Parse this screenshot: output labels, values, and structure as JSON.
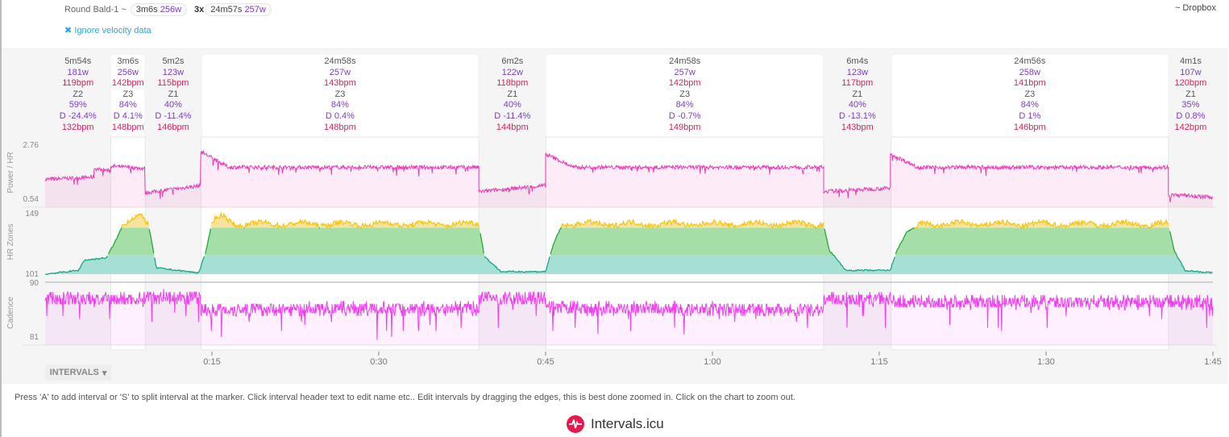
{
  "header": {
    "activity": "Round Bald-1 ~",
    "chip1": {
      "time": "3m6s",
      "watts": "256w"
    },
    "repeat": "3x",
    "chip2": {
      "time": "24m57s",
      "watts": "257w"
    },
    "source": "~ Dropbox",
    "ignore_velocity": "Ignore velocity data"
  },
  "intervals": [
    {
      "start": 0,
      "end": 5.9,
      "selected": false,
      "time": "5m54s",
      "watts": "181w",
      "hr": "119bpm",
      "zone": "Z2",
      "pct": "59%",
      "decoupling": "D -24.4%",
      "maxhr": "132bpm"
    },
    {
      "start": 5.9,
      "end": 9.0,
      "selected": true,
      "time": "3m6s",
      "watts": "256w",
      "hr": "142bpm",
      "zone": "Z3",
      "pct": "84%",
      "decoupling": "D 4.1%",
      "maxhr": "148bpm"
    },
    {
      "start": 9.0,
      "end": 14.03,
      "selected": false,
      "time": "5m2s",
      "watts": "123w",
      "hr": "115bpm",
      "zone": "Z1",
      "pct": "40%",
      "decoupling": "D -11.4%",
      "maxhr": "146bpm"
    },
    {
      "start": 14.03,
      "end": 39.0,
      "selected": true,
      "time": "24m58s",
      "watts": "257w",
      "hr": "143bpm",
      "zone": "Z3",
      "pct": "84%",
      "decoupling": "D 0.4%",
      "maxhr": "148bpm"
    },
    {
      "start": 39.0,
      "end": 45.03,
      "selected": false,
      "time": "6m2s",
      "watts": "122w",
      "hr": "118bpm",
      "zone": "Z1",
      "pct": "40%",
      "decoupling": "D -11.4%",
      "maxhr": "144bpm"
    },
    {
      "start": 45.03,
      "end": 70.0,
      "selected": true,
      "time": "24m58s",
      "watts": "257w",
      "hr": "142bpm",
      "zone": "Z3",
      "pct": "84%",
      "decoupling": "D -0.7%",
      "maxhr": "149bpm"
    },
    {
      "start": 70.0,
      "end": 76.07,
      "selected": false,
      "time": "6m4s",
      "watts": "123w",
      "hr": "117bpm",
      "zone": "Z1",
      "pct": "40%",
      "decoupling": "D -13.1%",
      "maxhr": "143bpm"
    },
    {
      "start": 76.07,
      "end": 101.0,
      "selected": true,
      "time": "24m56s",
      "watts": "258w",
      "hr": "141bpm",
      "zone": "Z3",
      "pct": "84%",
      "decoupling": "D 1%",
      "maxhr": "146bpm"
    },
    {
      "start": 101.0,
      "end": 105.0,
      "selected": false,
      "time": "4m1s",
      "watts": "107w",
      "hr": "120bpm",
      "zone": "Z1",
      "pct": "35%",
      "decoupling": "D 0.8%",
      "maxhr": "142bpm"
    }
  ],
  "chart_data": {
    "type": "line",
    "x_range_minutes": [
      0,
      105
    ],
    "x_ticks": [
      "0:15",
      "0:30",
      "0:45",
      "1:00",
      "1:15",
      "1:30",
      "1:45"
    ],
    "panels": [
      {
        "name": "Power / HR",
        "ylim": [
          0.54,
          2.76
        ],
        "ytick_labels": [
          "2.76",
          "0.54"
        ],
        "color": "#e83fb5",
        "segments": [
          [
            0,
            4.4,
            1.35,
            1.45
          ],
          [
            4.4,
            5.9,
            1.8,
            1.7
          ],
          [
            5.9,
            9,
            1.9,
            1.8
          ],
          [
            9,
            14,
            0.8,
            1.1
          ],
          [
            14,
            16.5,
            2.5,
            1.85
          ],
          [
            16.5,
            39,
            1.85,
            1.85
          ],
          [
            39,
            45,
            0.85,
            1.1
          ],
          [
            45,
            47.5,
            2.4,
            1.85
          ],
          [
            47.5,
            70,
            1.85,
            1.85
          ],
          [
            70,
            76,
            0.85,
            1.0
          ],
          [
            76,
            78.5,
            2.4,
            1.85
          ],
          [
            78.5,
            101,
            1.85,
            1.85
          ],
          [
            101,
            105,
            0.72,
            0.62
          ]
        ]
      },
      {
        "name": "HR Zones",
        "ylim": [
          101,
          149
        ],
        "ytick_labels": [
          "149",
          "101"
        ],
        "zone_bounds": [
          116,
          138
        ],
        "zone_colors": [
          "#a6dfd3",
          "#a5dea6",
          "#f9e39a"
        ],
        "line_colors": [
          "#1ba58a",
          "#26a93a",
          "#f5c518"
        ],
        "points": [
          [
            0,
            101
          ],
          [
            3,
            104
          ],
          [
            3.5,
            112
          ],
          [
            5.5,
            114
          ],
          [
            6.2,
            125
          ],
          [
            7,
            140
          ],
          [
            8.5,
            146
          ],
          [
            9.3,
            140
          ],
          [
            10,
            106
          ],
          [
            13.8,
            102
          ],
          [
            14.5,
            120
          ],
          [
            15,
            142
          ],
          [
            16,
            146
          ],
          [
            17,
            140
          ],
          [
            39,
            140
          ],
          [
            39.5,
            115
          ],
          [
            41,
            103
          ],
          [
            45,
            103
          ],
          [
            45.7,
            125
          ],
          [
            46.5,
            140
          ],
          [
            70,
            140
          ],
          [
            70.5,
            120
          ],
          [
            72,
            104
          ],
          [
            76,
            104
          ],
          [
            76.5,
            118
          ],
          [
            77.5,
            135
          ],
          [
            79,
            140
          ],
          [
            101,
            140
          ],
          [
            101.5,
            120
          ],
          [
            102.5,
            104
          ],
          [
            105,
            102
          ]
        ]
      },
      {
        "name": "Cadence",
        "ylim": [
          81,
          90
        ],
        "ytick_labels": [
          "90",
          "81"
        ],
        "color": "#f03ff0",
        "segments": [
          [
            0,
            5.9,
            87.5,
            87.2
          ],
          [
            5.9,
            9,
            87.3,
            87.3
          ],
          [
            9,
            14,
            87.8,
            87.6
          ],
          [
            14,
            39,
            85.6,
            85.8
          ],
          [
            39,
            45,
            87.4,
            87.4
          ],
          [
            45,
            70,
            85.8,
            85.6
          ],
          [
            70,
            76,
            87.3,
            87.3
          ],
          [
            76,
            101,
            86.8,
            86.8
          ],
          [
            101,
            105,
            86.8,
            86.8
          ]
        ]
      }
    ]
  },
  "intervals_button": "INTERVALS",
  "help": "Press 'A' to add interval or 'S' to split interval at the marker. Click interval header text to edit name etc.. Edit intervals by dragging the edges, this is best done zoomed in. Click on the chart to zoom out.",
  "logo": "Intervals.icu"
}
